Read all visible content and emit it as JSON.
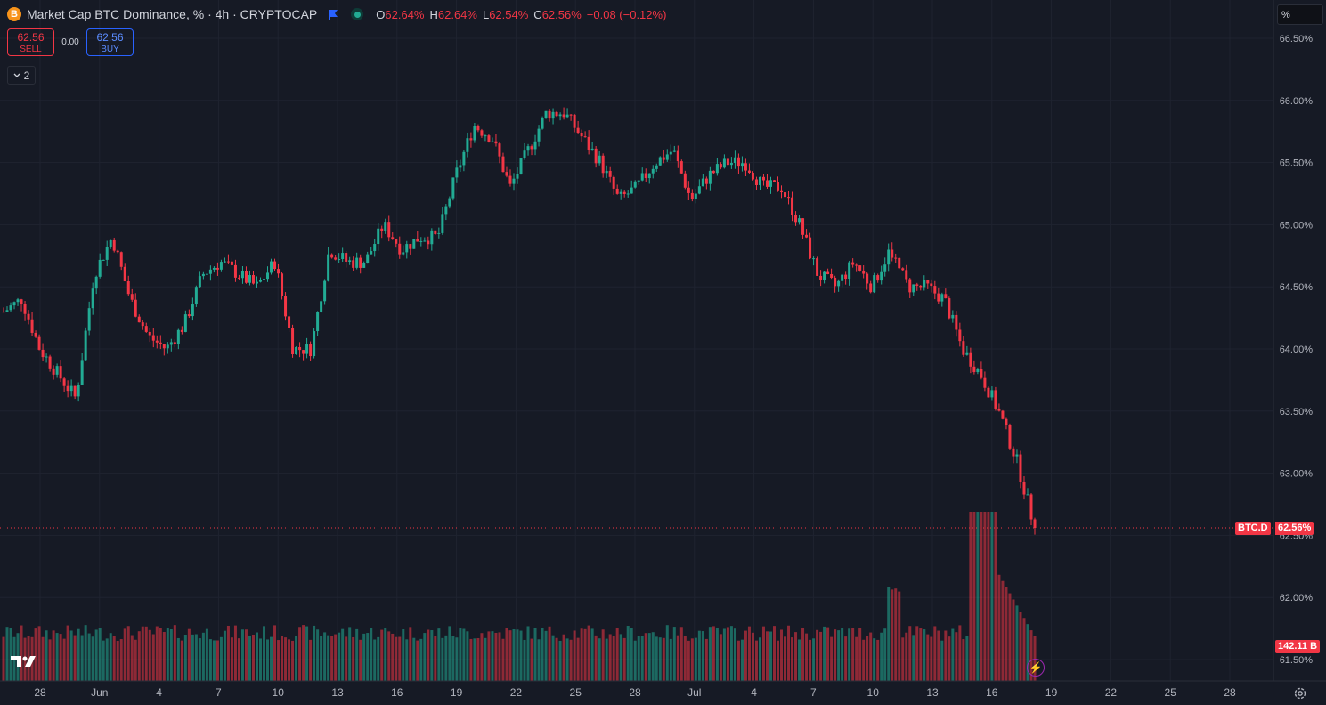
{
  "header": {
    "symbol_icon": "B",
    "title": "Market Cap BTC Dominance, % · 4h · CRYPTOCAP",
    "ohlc": {
      "o_label": "O",
      "o": "62.64%",
      "h_label": "H",
      "h": "62.64%",
      "l_label": "L",
      "l": "62.54%",
      "c_label": "C",
      "c": "62.56%",
      "change": "−0.08 (−0.12%)"
    }
  },
  "trade": {
    "sell_price": "62.56",
    "sell_label": "SELL",
    "spread": "0.00",
    "buy_price": "62.56",
    "buy_label": "BUY"
  },
  "indicators_toggle": {
    "count": "2"
  },
  "scale_mode": "%",
  "price_axis": [
    "66.50%",
    "66.00%",
    "65.50%",
    "65.00%",
    "64.50%",
    "64.00%",
    "63.50%",
    "63.00%",
    "62.50%",
    "62.00%",
    "61.50%"
  ],
  "time_axis": [
    "28",
    "Jun",
    "4",
    "7",
    "10",
    "13",
    "16",
    "19",
    "22",
    "25",
    "28",
    "Jul",
    "4",
    "7",
    "10",
    "13",
    "16",
    "19",
    "22",
    "25",
    "28"
  ],
  "symbol_tag": "BTC.D",
  "last_price_tag": "62.56%",
  "volume_tag": "142.11 B",
  "colors": {
    "up": "#22ab94",
    "down": "#f23645",
    "background": "#161a25",
    "grid": "#1f2330"
  },
  "chart_data": {
    "type": "candlestick",
    "title": "Market Cap BTC Dominance, % · 4h · CRYPTOCAP",
    "ylim": [
      61.5,
      66.75
    ],
    "x_ticks": [
      "28",
      "Jun",
      "4",
      "7",
      "10",
      "13",
      "16",
      "19",
      "22",
      "25",
      "28",
      "Jul",
      "4",
      "7",
      "10",
      "13",
      "16",
      "19",
      "22",
      "25",
      "28"
    ],
    "close_series": [
      64.3,
      64.4,
      64.0,
      63.8,
      63.6,
      64.6,
      64.9,
      64.4,
      64.1,
      64.0,
      64.2,
      64.6,
      64.7,
      64.6,
      64.5,
      64.7,
      64.0,
      64.0,
      64.8,
      64.7,
      64.7,
      65.0,
      64.8,
      64.9,
      64.9,
      65.4,
      65.8,
      65.7,
      65.3,
      65.6,
      65.9,
      65.9,
      65.7,
      65.5,
      65.2,
      65.3,
      65.5,
      65.6,
      65.2,
      65.4,
      65.5,
      65.5,
      65.3,
      65.3,
      65.0,
      64.6,
      64.5,
      64.7,
      64.5,
      64.8,
      64.5,
      64.5,
      64.4,
      64.0,
      63.8,
      63.5,
      63.1,
      62.56
    ],
    "volume_note": "last bar 142.11 B"
  }
}
